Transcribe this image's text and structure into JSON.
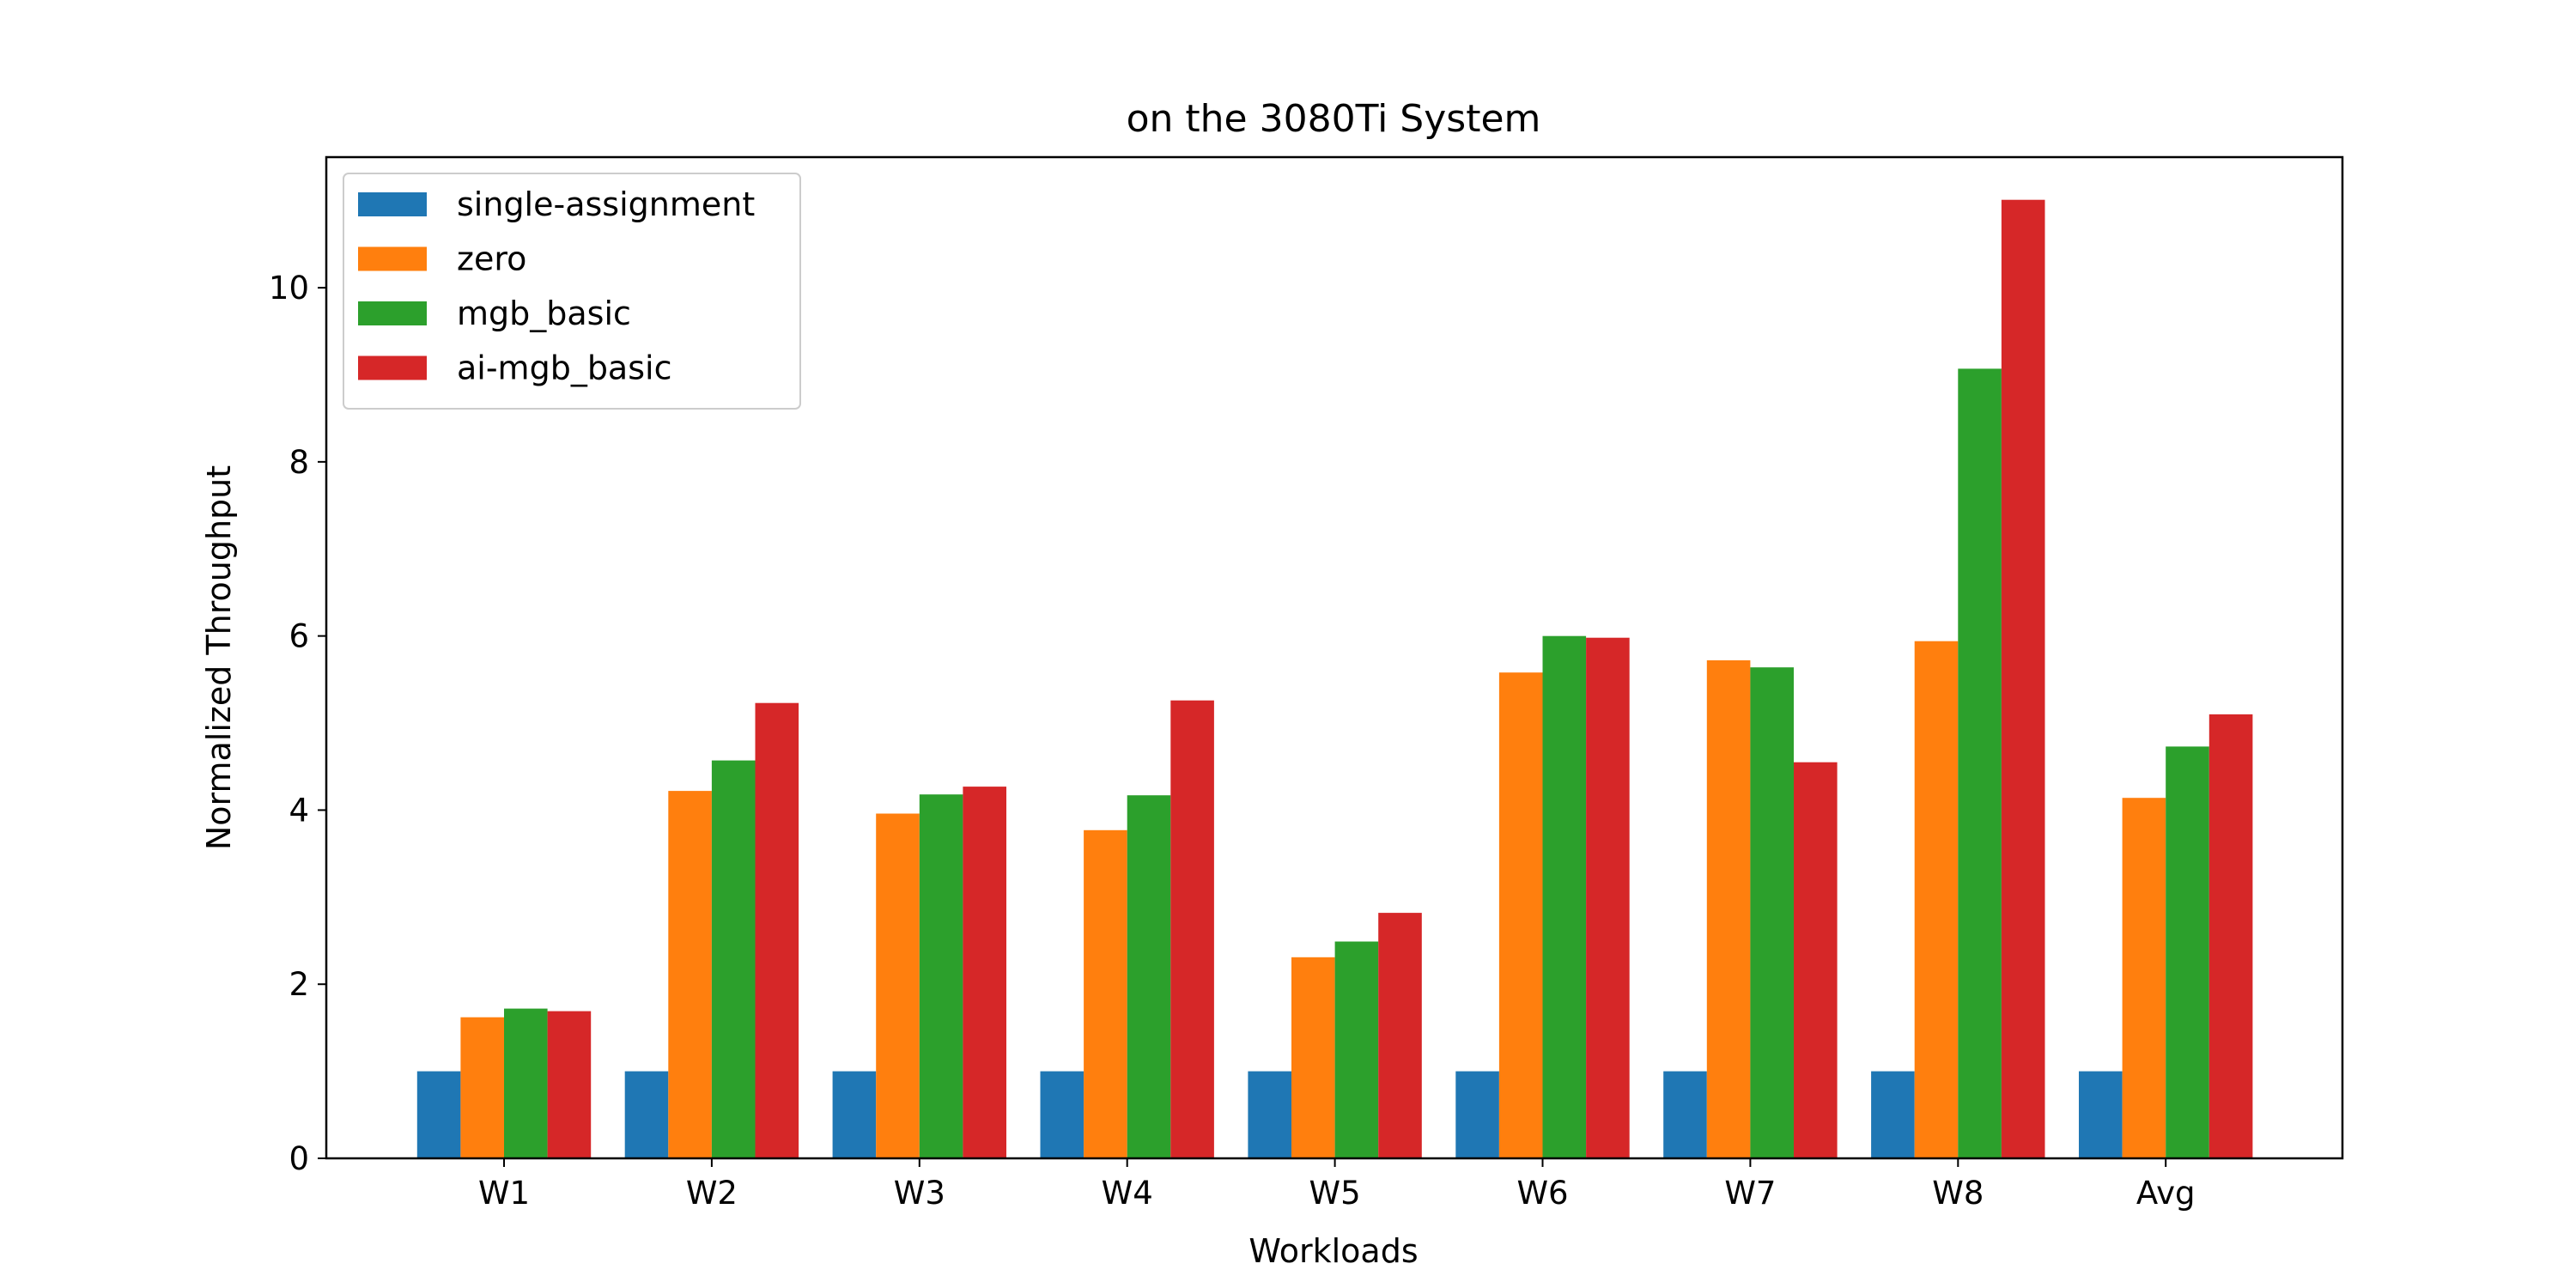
{
  "chart_data": {
    "type": "bar",
    "title": "on the 3080Ti System",
    "xlabel": "Workloads",
    "ylabel": "Normalized Throughput",
    "categories": [
      "W1",
      "W2",
      "W3",
      "W4",
      "W5",
      "W6",
      "W7",
      "W8",
      "Avg"
    ],
    "ylim": [
      0,
      11.5
    ],
    "yticks": [
      0,
      2,
      4,
      6,
      8,
      10
    ],
    "legend_position": "top-left",
    "grid": false,
    "series": [
      {
        "name": "single-assignment",
        "color": "#1f77b4",
        "values": [
          1,
          1,
          1,
          1,
          1,
          1,
          1,
          1,
          1
        ]
      },
      {
        "name": "zero",
        "color": "#ff7f0e",
        "values": [
          1.62,
          4.22,
          3.96,
          3.77,
          2.31,
          5.58,
          5.72,
          5.94,
          4.14
        ]
      },
      {
        "name": "mgb_basic",
        "color": "#2ca02c",
        "values": [
          1.72,
          4.57,
          4.18,
          4.17,
          2.49,
          6.0,
          5.64,
          9.07,
          4.73
        ]
      },
      {
        "name": "ai-mgb_basic",
        "color": "#d62728",
        "values": [
          1.69,
          5.23,
          4.27,
          5.26,
          2.82,
          5.98,
          4.55,
          11.01,
          5.1
        ]
      }
    ]
  }
}
